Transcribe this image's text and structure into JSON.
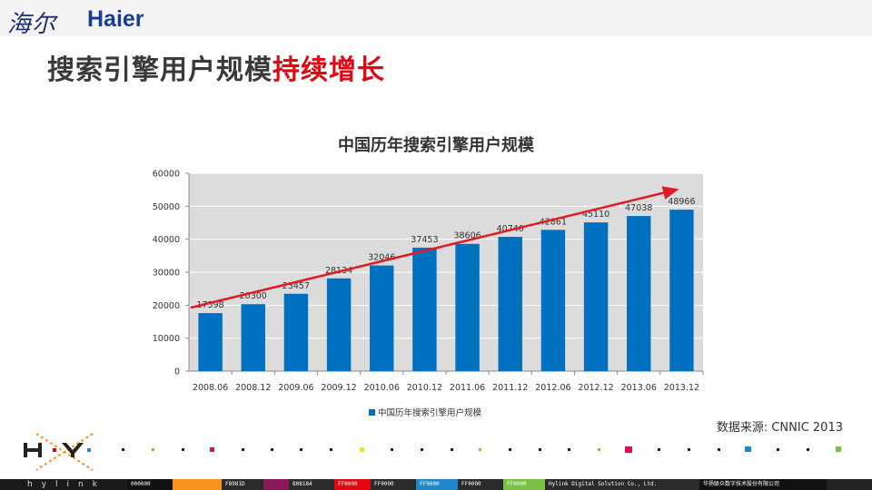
{
  "header": {
    "logo_script": "海尔",
    "logo_brand": "Haier"
  },
  "slide": {
    "title_main": "搜索引擎用户规模",
    "title_highlight": "持续增长",
    "source_note": "数据来源: CNNIC 2013"
  },
  "footer": {
    "brand": "hylink",
    "segments": [
      {
        "label": "000000",
        "color": "#111111"
      },
      {
        "label": "",
        "color": "#f7941d"
      },
      {
        "label": "F8981D",
        "color": "#2a2a2a"
      },
      {
        "label": "",
        "color": "#8a1b5a"
      },
      {
        "label": "808184",
        "color": "#2a2a2a"
      },
      {
        "label": "FF0000",
        "color": "#e30613"
      },
      {
        "label": "FF0000",
        "color": "#2a2a2a"
      },
      {
        "label": "FF0000",
        "color": "#1e88c8"
      },
      {
        "label": "FF0000",
        "color": "#2a2a2a"
      },
      {
        "label": "FF0000",
        "color": "#7ac143"
      },
      {
        "label": "Hylink Digital Solution Co., Ltd.",
        "color": "#2a2a2a"
      },
      {
        "label": "华扬联众数字技术股份有限公司",
        "color": "#111111"
      }
    ]
  },
  "colors": {
    "bar": "#0070c0",
    "arrow": "#e31b23",
    "plot_bg": "#dcdcdc",
    "accent_red": "#e30613"
  },
  "chart_data": {
    "type": "bar",
    "title": "中国历年搜索引擎用户规模",
    "categories": [
      "2008.06",
      "2008.12",
      "2009.06",
      "2009.12",
      "2010.06",
      "2010.12",
      "2011.06",
      "2011.12",
      "2012.06",
      "2012.12",
      "2013.06",
      "2013.12"
    ],
    "series": [
      {
        "name": "中国历年搜索引擎用户规模",
        "values": [
          17598,
          20300,
          23457,
          28134,
          32046,
          37453,
          38606,
          40740,
          42861,
          45110,
          47038,
          48966
        ]
      }
    ],
    "ylim": [
      0,
      60000
    ],
    "yticks": [
      0,
      10000,
      20000,
      30000,
      40000,
      50000,
      60000
    ],
    "grid": true,
    "legend": "bottom",
    "annotation": "trend-arrow"
  }
}
